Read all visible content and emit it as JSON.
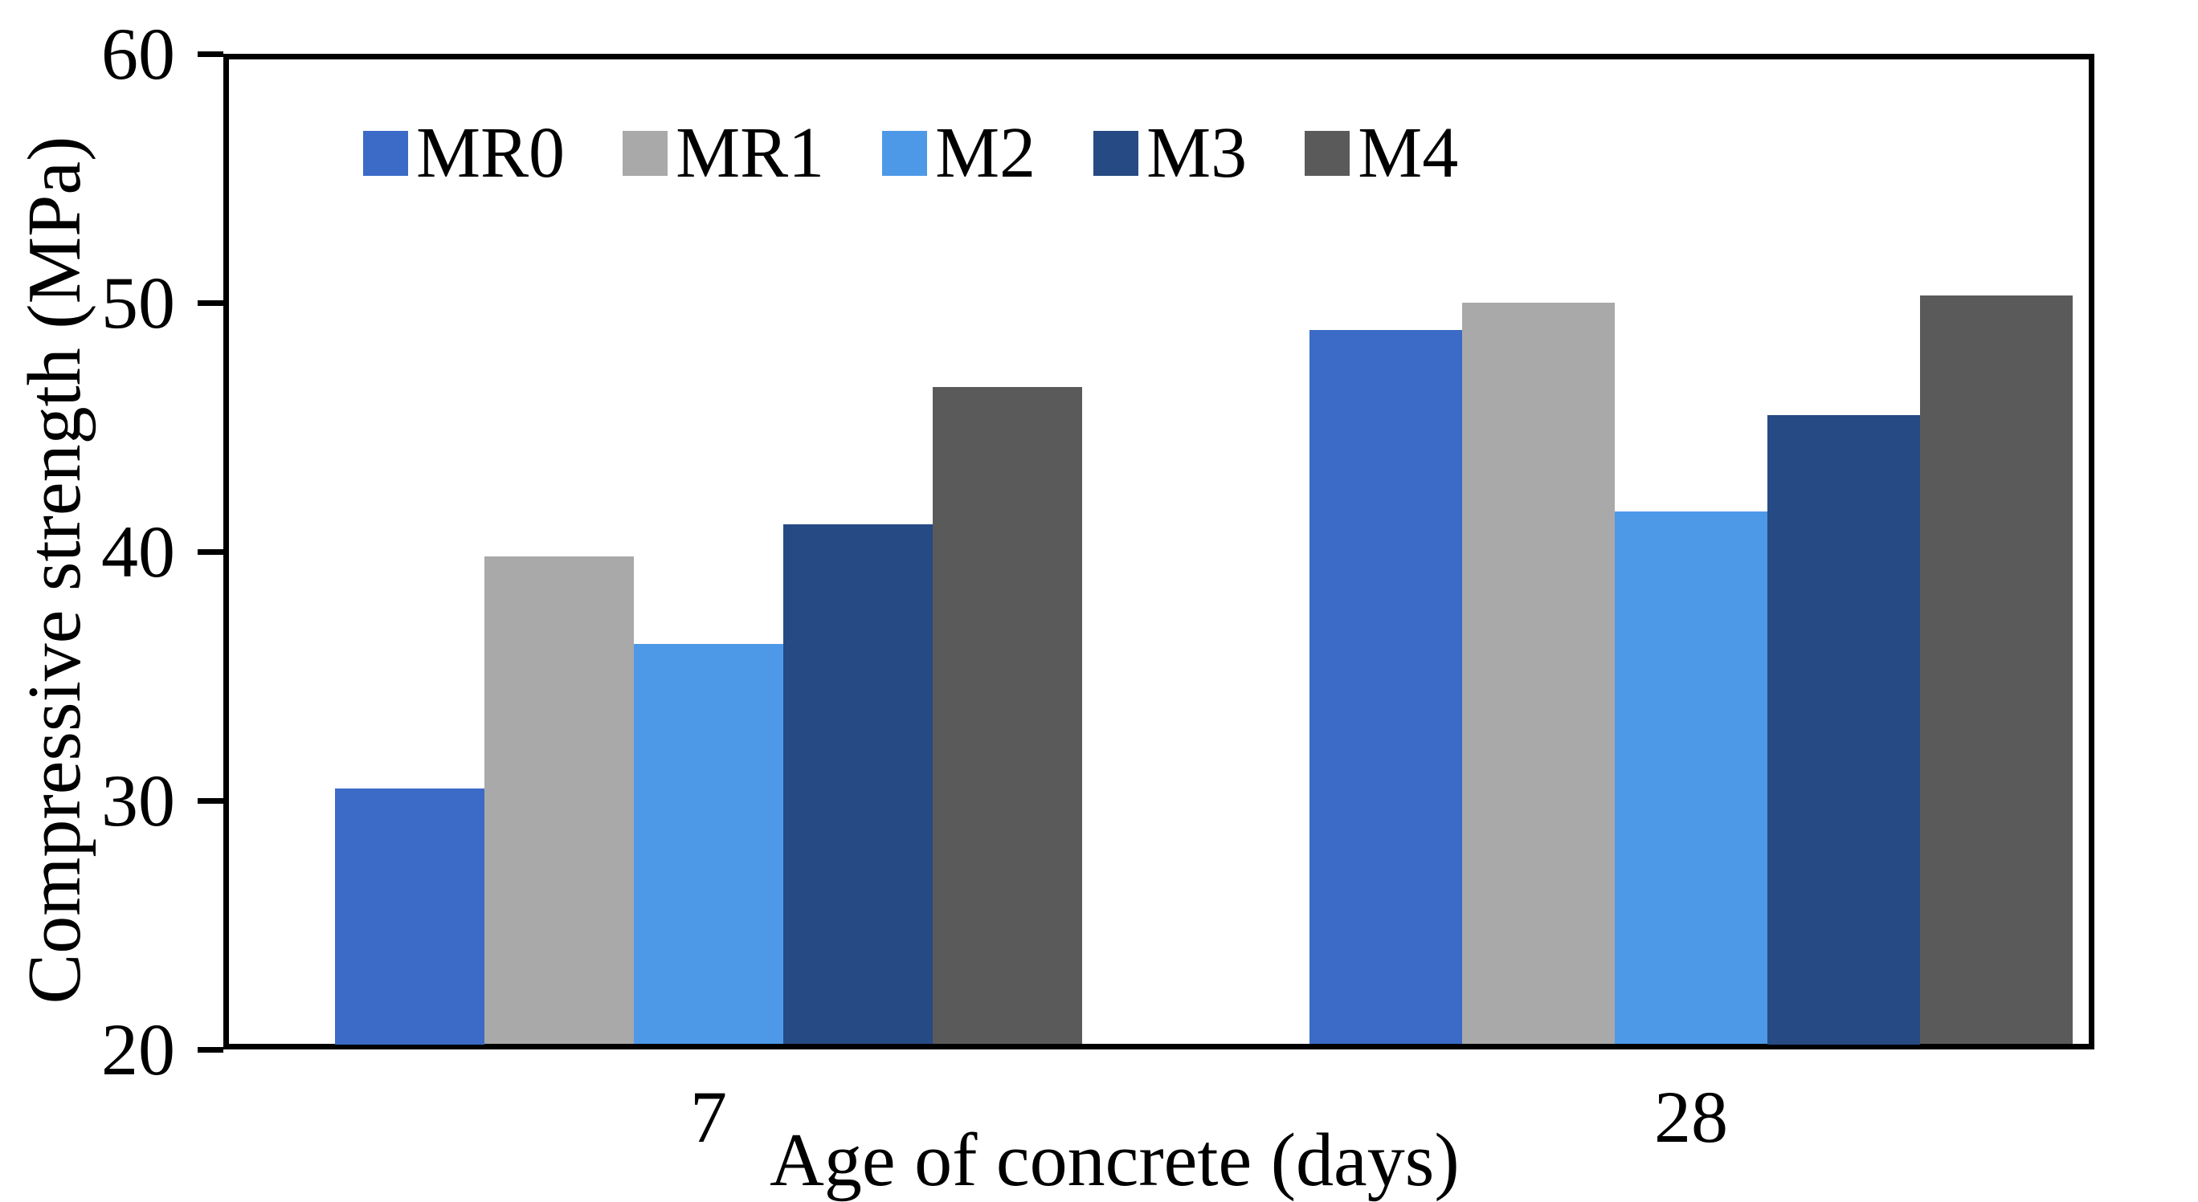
{
  "chart_data": {
    "type": "bar",
    "title": "",
    "xlabel": "Age of concrete (days)",
    "ylabel": "Compressive strength (MPa)",
    "categories": [
      "7",
      "28"
    ],
    "series": [
      {
        "name": "MR0",
        "color": "#3B6BC6",
        "values": [
          30.5,
          48.9
        ]
      },
      {
        "name": "MR1",
        "color": "#A9A9A9",
        "values": [
          39.8,
          50.0
        ]
      },
      {
        "name": "M2",
        "color": "#4D99E8",
        "values": [
          36.3,
          41.6
        ]
      },
      {
        "name": "M3",
        "color": "#264A84",
        "values": [
          41.1,
          45.5
        ]
      },
      {
        "name": "M4",
        "color": "#5A5A5A",
        "values": [
          46.6,
          50.3
        ]
      }
    ],
    "ylim": [
      20,
      60
    ],
    "yticks": [
      20,
      30,
      40,
      50,
      60
    ],
    "grid": false,
    "legend_position": "top-left-inside",
    "axis_color": "#000000",
    "background_color": "#FFFFFF"
  }
}
